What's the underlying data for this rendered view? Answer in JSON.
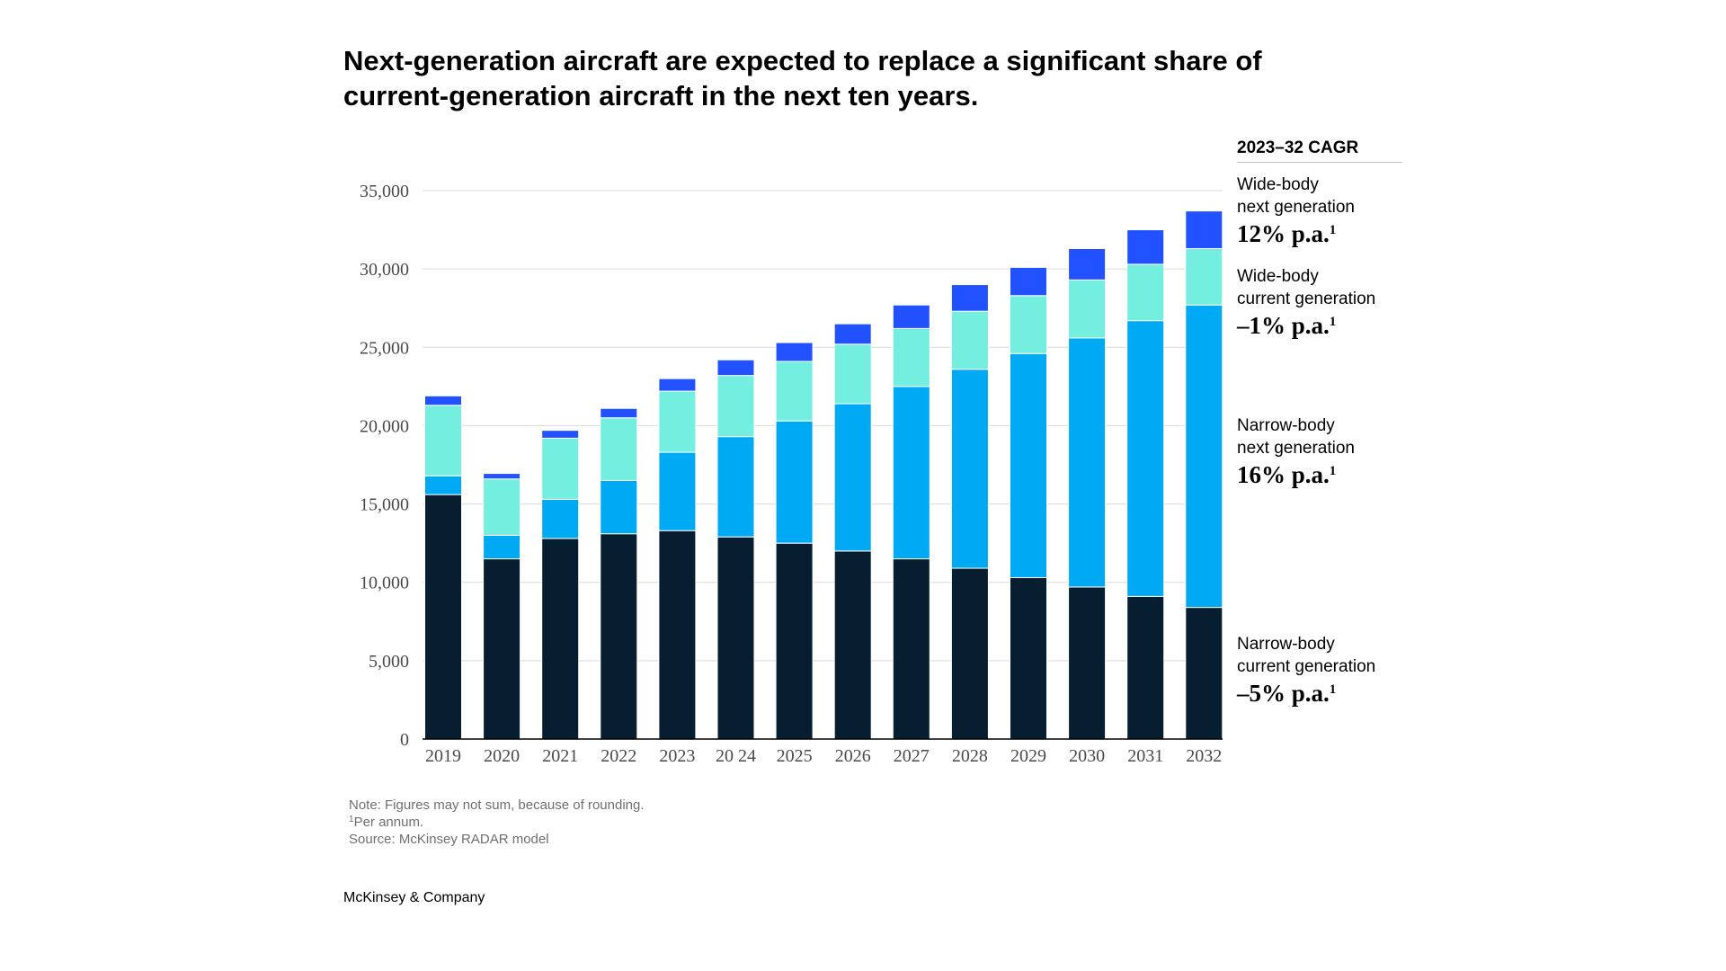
{
  "title": "Next-generation aircraft are expected to replace a significant share of current-generation aircraft in the next ten years.",
  "colors": {
    "narrow_current": "#061e30",
    "narrow_next": "#00a9f4",
    "wide_current": "#74eede",
    "wide_next": "#2251ff",
    "grid": "#d9d9d9",
    "axis": "#000000"
  },
  "legend": {
    "heading": "2023–32 CAGR",
    "items": [
      {
        "name": "Wide-body\nnext generation",
        "cagr": "12% p.a.",
        "footnote": "1"
      },
      {
        "name": "Wide-body\ncurrent generation",
        "cagr": "–1% p.a.",
        "footnote": "1"
      },
      {
        "name": "Narrow-body\nnext generation",
        "cagr": "16% p.a.",
        "footnote": "1"
      },
      {
        "name": "Narrow-body\ncurrent generation",
        "cagr": "–5% p.a.",
        "footnote": "1"
      }
    ]
  },
  "notes": {
    "note": "Note: Figures may not sum, because of rounding.",
    "footnote_mark": "1",
    "footnote_text": "Per annum.",
    "source": "Source: McKinsey RADAR model"
  },
  "brand": "McKinsey & Company",
  "chart_data": {
    "type": "bar",
    "stacked": true,
    "categories": [
      "2019",
      "2020",
      "2021",
      "2022",
      "2023",
      "20 24",
      "2025",
      "2026",
      "2027",
      "2028",
      "2029",
      "2030",
      "2031",
      "2032"
    ],
    "y_ticks": [
      "0",
      "5,000",
      "10,000",
      "15,000",
      "20,000",
      "25,000",
      "30,000",
      "35,000"
    ],
    "ylim": [
      0,
      35000
    ],
    "grid": true,
    "series": [
      {
        "key": "narrow_current",
        "name": "Narrow-body current generation",
        "values": [
          15600,
          11500,
          12800,
          13100,
          13300,
          12900,
          12500,
          12000,
          11500,
          10900,
          10300,
          9700,
          9100,
          8400
        ]
      },
      {
        "key": "narrow_next",
        "name": "Narrow-body next generation",
        "values": [
          1200,
          1500,
          2500,
          3400,
          5000,
          6400,
          7800,
          9400,
          11000,
          12700,
          14300,
          15900,
          17600,
          19300
        ]
      },
      {
        "key": "wide_current",
        "name": "Wide-body current generation",
        "values": [
          4500,
          3600,
          3900,
          4000,
          3900,
          3900,
          3800,
          3800,
          3700,
          3700,
          3700,
          3700,
          3600,
          3600
        ]
      },
      {
        "key": "wide_next",
        "name": "Wide-body next generation",
        "values": [
          600,
          350,
          500,
          600,
          800,
          1000,
          1200,
          1300,
          1500,
          1700,
          1800,
          2000,
          2200,
          2400
        ]
      }
    ]
  }
}
